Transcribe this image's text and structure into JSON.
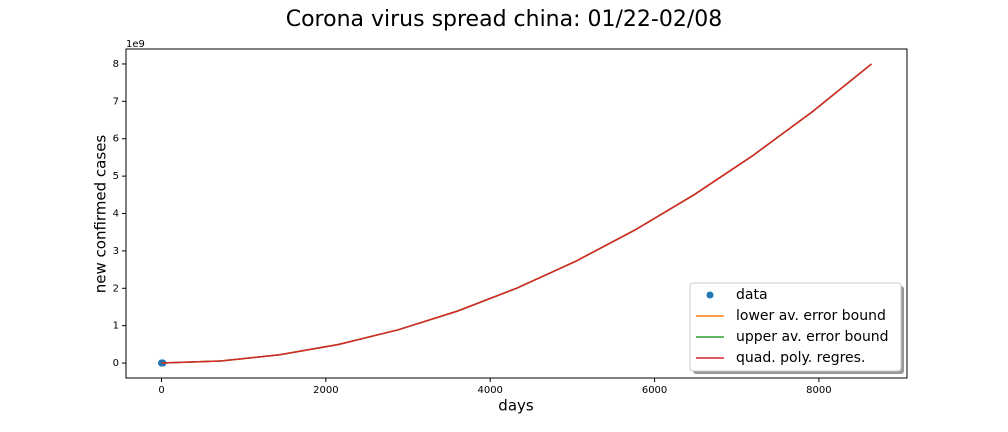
{
  "chart_data": {
    "type": "line",
    "title": "Corona virus spread china: 01/22-02/08",
    "xlabel": "days",
    "ylabel": "new confirmed cases",
    "y_offset_label": "1e9",
    "xlim": [
      -432,
      9072
    ],
    "xticks": [
      0,
      2000,
      4000,
      6000,
      8000
    ],
    "ylim": [
      -0.4,
      8.4
    ],
    "yticks": [
      0,
      1,
      2,
      3,
      4,
      5,
      6,
      7,
      8
    ],
    "grid": false,
    "legend": "lower right",
    "series": [
      {
        "name": "data",
        "color": "#1f77b4",
        "mode": "markers",
        "x": [
          0,
          3,
          6,
          9,
          12,
          15,
          17
        ],
        "values": [
          6e-07,
          3e-06,
          8e-06,
          1.5e-05,
          2.4e-05,
          3.1e-05,
          3.7e-05
        ]
      },
      {
        "name": "lower av. error bound",
        "color": "#ff7f0e",
        "mode": "line",
        "x": [
          0,
          720,
          1440,
          2160,
          2880,
          3600,
          4320,
          5040,
          5760,
          6480,
          7200,
          7920,
          8640
        ],
        "values": [
          0,
          0.056,
          0.222,
          0.5,
          0.889,
          1.389,
          2.0,
          2.722,
          3.556,
          4.5,
          5.556,
          6.722,
          8.0
        ]
      },
      {
        "name": "upper av. error bound",
        "color": "#2ca02c",
        "mode": "line",
        "x": [
          0,
          720,
          1440,
          2160,
          2880,
          3600,
          4320,
          5040,
          5760,
          6480,
          7200,
          7920,
          8640
        ],
        "values": [
          0,
          0.056,
          0.222,
          0.5,
          0.889,
          1.389,
          2.0,
          2.722,
          3.556,
          4.5,
          5.556,
          6.722,
          8.0
        ]
      },
      {
        "name": "quad. poly. regres.",
        "color": "#d62728",
        "mode": "line",
        "x": [
          0,
          720,
          1440,
          2160,
          2880,
          3600,
          4320,
          5040,
          5760,
          6480,
          7200,
          7920,
          8640
        ],
        "values": [
          0,
          0.056,
          0.222,
          0.5,
          0.889,
          1.389,
          2.0,
          2.722,
          3.556,
          4.5,
          5.556,
          6.722,
          8.0
        ]
      }
    ]
  }
}
